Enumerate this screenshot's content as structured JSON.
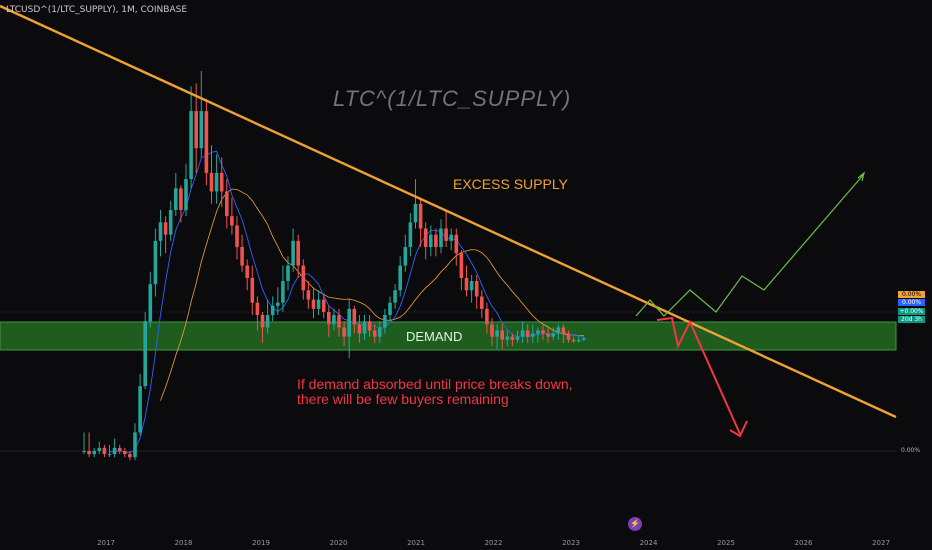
{
  "header": {
    "symbol_text": "LTCUSD^(1/LTC_SUPPLY), 1M, COINBASE"
  },
  "watermark": "LTC^(1/LTC_SUPPLY)",
  "annotations": {
    "excess_supply": "EXCESS SUPPLY",
    "demand": "DEMAND",
    "note_line1": "If demand absorbed until price breaks down,",
    "note_line2": "there will be few buyers remaining"
  },
  "price_scale": {
    "tags": [
      "0.00%",
      "0.00%",
      "+0.00%",
      "20d 3h"
    ],
    "zero_label": "0.00%"
  },
  "colors": {
    "background": "#0b0b0d",
    "up": "#26a69a",
    "down": "#ef5350",
    "trendline": "#f0a232",
    "demand_zone": "#1f5d1f",
    "ma_fast": "#2962ff",
    "ma_slow": "#f0a232",
    "bull_projection": "#6abf4b",
    "bear_projection": "#f23645"
  },
  "icons": {
    "bottom_marker": "lightning-icon"
  },
  "chart_data": {
    "type": "candlestick",
    "title": "",
    "timeframe": "1M",
    "x_axis": {
      "labels": [
        "2017",
        "2018",
        "2019",
        "2020",
        "2021",
        "2022",
        "2023",
        "2024",
        "2025",
        "2026",
        "2027"
      ]
    },
    "y_axis": {
      "scale": "percent",
      "labels": [
        "0.00%"
      ]
    },
    "candles": [
      {
        "o": 0,
        "c": 0,
        "h": 0.06,
        "l": -0.01
      },
      {
        "o": 0,
        "c": -0.01,
        "h": 0.06,
        "l": -0.02
      },
      {
        "o": -0.01,
        "c": 0,
        "h": 0.01,
        "l": -0.02
      },
      {
        "o": 0,
        "c": 0.01,
        "h": 0.03,
        "l": -0.01
      },
      {
        "o": 0.01,
        "c": -0.01,
        "h": 0.02,
        "l": -0.02
      },
      {
        "o": -0.01,
        "c": -0.01,
        "h": 0.02,
        "l": -0.02
      },
      {
        "o": -0.01,
        "c": 0.01,
        "h": 0.04,
        "l": -0.02
      },
      {
        "o": 0.01,
        "c": 0,
        "h": 0.02,
        "l": -0.01
      },
      {
        "o": 0,
        "c": -0.01,
        "h": 0.01,
        "l": -0.02
      },
      {
        "o": -0.01,
        "c": -0.02,
        "h": 0,
        "l": -0.03
      },
      {
        "o": -0.02,
        "c": 0.06,
        "h": 0.09,
        "l": -0.03
      },
      {
        "o": 0.06,
        "c": 0.21,
        "h": 0.25,
        "l": 0.05
      },
      {
        "o": 0.21,
        "c": 0.42,
        "h": 0.45,
        "l": 0.2
      },
      {
        "o": 0.42,
        "c": 0.54,
        "h": 0.58,
        "l": 0.4
      },
      {
        "o": 0.54,
        "c": 0.68,
        "h": 0.72,
        "l": 0.5
      },
      {
        "o": 0.68,
        "c": 0.74,
        "h": 0.78,
        "l": 0.63
      },
      {
        "o": 0.74,
        "c": 0.7,
        "h": 0.76,
        "l": 0.64
      },
      {
        "o": 0.7,
        "c": 0.78,
        "h": 0.81,
        "l": 0.68
      },
      {
        "o": 0.78,
        "c": 0.85,
        "h": 0.9,
        "l": 0.76
      },
      {
        "o": 0.85,
        "c": 0.78,
        "h": 0.86,
        "l": 0.74
      },
      {
        "o": 0.78,
        "c": 0.88,
        "h": 0.93,
        "l": 0.76
      },
      {
        "o": 0.88,
        "c": 1.1,
        "h": 1.18,
        "l": 0.85
      },
      {
        "o": 1.1,
        "c": 0.98,
        "h": 1.19,
        "l": 0.9
      },
      {
        "o": 0.98,
        "c": 1.1,
        "h": 1.23,
        "l": 0.95
      },
      {
        "o": 1.1,
        "c": 0.9,
        "h": 1.14,
        "l": 0.86
      },
      {
        "o": 0.9,
        "c": 0.84,
        "h": 0.99,
        "l": 0.8
      },
      {
        "o": 0.84,
        "c": 0.9,
        "h": 0.96,
        "l": 0.8
      },
      {
        "o": 0.9,
        "c": 0.84,
        "h": 0.95,
        "l": 0.79
      },
      {
        "o": 0.84,
        "c": 0.76,
        "h": 0.88,
        "l": 0.72
      },
      {
        "o": 0.76,
        "c": 0.73,
        "h": 0.82,
        "l": 0.7
      },
      {
        "o": 0.73,
        "c": 0.66,
        "h": 0.76,
        "l": 0.62
      },
      {
        "o": 0.66,
        "c": 0.6,
        "h": 0.7,
        "l": 0.58
      },
      {
        "o": 0.6,
        "c": 0.56,
        "h": 0.62,
        "l": 0.52
      },
      {
        "o": 0.56,
        "c": 0.48,
        "h": 0.6,
        "l": 0.44
      },
      {
        "o": 0.48,
        "c": 0.44,
        "h": 0.5,
        "l": 0.39
      },
      {
        "o": 0.44,
        "c": 0.4,
        "h": 0.45,
        "l": 0.35
      },
      {
        "o": 0.4,
        "c": 0.44,
        "h": 0.49,
        "l": 0.38
      },
      {
        "o": 0.44,
        "c": 0.47,
        "h": 0.5,
        "l": 0.42
      },
      {
        "o": 0.47,
        "c": 0.48,
        "h": 0.53,
        "l": 0.44
      },
      {
        "o": 0.48,
        "c": 0.55,
        "h": 0.6,
        "l": 0.45
      },
      {
        "o": 0.55,
        "c": 0.6,
        "h": 0.63,
        "l": 0.52
      },
      {
        "o": 0.6,
        "c": 0.68,
        "h": 0.72,
        "l": 0.58
      },
      {
        "o": 0.68,
        "c": 0.6,
        "h": 0.7,
        "l": 0.56
      },
      {
        "o": 0.6,
        "c": 0.52,
        "h": 0.62,
        "l": 0.49
      },
      {
        "o": 0.52,
        "c": 0.49,
        "h": 0.55,
        "l": 0.46
      },
      {
        "o": 0.49,
        "c": 0.46,
        "h": 0.53,
        "l": 0.43
      },
      {
        "o": 0.46,
        "c": 0.49,
        "h": 0.52,
        "l": 0.44
      },
      {
        "o": 0.49,
        "c": 0.45,
        "h": 0.51,
        "l": 0.43
      },
      {
        "o": 0.45,
        "c": 0.41,
        "h": 0.47,
        "l": 0.37
      },
      {
        "o": 0.41,
        "c": 0.44,
        "h": 0.46,
        "l": 0.39
      },
      {
        "o": 0.44,
        "c": 0.4,
        "h": 0.46,
        "l": 0.37
      },
      {
        "o": 0.4,
        "c": 0.37,
        "h": 0.42,
        "l": 0.34
      },
      {
        "o": 0.37,
        "c": 0.46,
        "h": 0.49,
        "l": 0.3
      },
      {
        "o": 0.46,
        "c": 0.41,
        "h": 0.47,
        "l": 0.38
      },
      {
        "o": 0.41,
        "c": 0.38,
        "h": 0.44,
        "l": 0.35
      },
      {
        "o": 0.38,
        "c": 0.42,
        "h": 0.44,
        "l": 0.36
      },
      {
        "o": 0.42,
        "c": 0.39,
        "h": 0.44,
        "l": 0.37
      },
      {
        "o": 0.39,
        "c": 0.37,
        "h": 0.41,
        "l": 0.35
      },
      {
        "o": 0.37,
        "c": 0.4,
        "h": 0.42,
        "l": 0.35
      },
      {
        "o": 0.4,
        "c": 0.44,
        "h": 0.46,
        "l": 0.38
      },
      {
        "o": 0.44,
        "c": 0.48,
        "h": 0.5,
        "l": 0.42
      },
      {
        "o": 0.48,
        "c": 0.52,
        "h": 0.54,
        "l": 0.46
      },
      {
        "o": 0.52,
        "c": 0.6,
        "h": 0.63,
        "l": 0.5
      },
      {
        "o": 0.6,
        "c": 0.66,
        "h": 0.7,
        "l": 0.58
      },
      {
        "o": 0.66,
        "c": 0.74,
        "h": 0.77,
        "l": 0.63
      },
      {
        "o": 0.74,
        "c": 0.8,
        "h": 0.88,
        "l": 0.72
      },
      {
        "o": 0.8,
        "c": 0.72,
        "h": 0.82,
        "l": 0.66
      },
      {
        "o": 0.72,
        "c": 0.66,
        "h": 0.74,
        "l": 0.62
      },
      {
        "o": 0.66,
        "c": 0.7,
        "h": 0.73,
        "l": 0.63
      },
      {
        "o": 0.7,
        "c": 0.66,
        "h": 0.72,
        "l": 0.63
      },
      {
        "o": 0.66,
        "c": 0.72,
        "h": 0.75,
        "l": 0.64
      },
      {
        "o": 0.72,
        "c": 0.68,
        "h": 0.78,
        "l": 0.66
      },
      {
        "o": 0.68,
        "c": 0.7,
        "h": 0.72,
        "l": 0.65
      },
      {
        "o": 0.7,
        "c": 0.64,
        "h": 0.72,
        "l": 0.6
      },
      {
        "o": 0.64,
        "c": 0.56,
        "h": 0.65,
        "l": 0.52
      },
      {
        "o": 0.56,
        "c": 0.52,
        "h": 0.6,
        "l": 0.5
      },
      {
        "o": 0.52,
        "c": 0.55,
        "h": 0.57,
        "l": 0.48
      },
      {
        "o": 0.55,
        "c": 0.5,
        "h": 0.57,
        "l": 0.46
      },
      {
        "o": 0.5,
        "c": 0.46,
        "h": 0.52,
        "l": 0.43
      },
      {
        "o": 0.46,
        "c": 0.41,
        "h": 0.48,
        "l": 0.38
      },
      {
        "o": 0.41,
        "c": 0.37,
        "h": 0.43,
        "l": 0.34
      },
      {
        "o": 0.37,
        "c": 0.39,
        "h": 0.41,
        "l": 0.33
      },
      {
        "o": 0.39,
        "c": 0.36,
        "h": 0.41,
        "l": 0.33
      },
      {
        "o": 0.36,
        "c": 0.37,
        "h": 0.39,
        "l": 0.34
      },
      {
        "o": 0.37,
        "c": 0.36,
        "h": 0.38,
        "l": 0.34
      },
      {
        "o": 0.36,
        "c": 0.37,
        "h": 0.39,
        "l": 0.35
      },
      {
        "o": 0.37,
        "c": 0.39,
        "h": 0.42,
        "l": 0.35
      },
      {
        "o": 0.39,
        "c": 0.37,
        "h": 0.41,
        "l": 0.35
      },
      {
        "o": 0.37,
        "c": 0.38,
        "h": 0.41,
        "l": 0.35
      },
      {
        "o": 0.38,
        "c": 0.39,
        "h": 0.4,
        "l": 0.35
      },
      {
        "o": 0.39,
        "c": 0.38,
        "h": 0.41,
        "l": 0.36
      },
      {
        "o": 0.38,
        "c": 0.37,
        "h": 0.4,
        "l": 0.35
      },
      {
        "o": 0.37,
        "c": 0.38,
        "h": 0.4,
        "l": 0.36
      },
      {
        "o": 0.38,
        "c": 0.4,
        "h": 0.41,
        "l": 0.36
      },
      {
        "o": 0.4,
        "c": 0.38,
        "h": 0.41,
        "l": 0.35
      },
      {
        "o": 0.38,
        "c": 0.36,
        "h": 0.39,
        "l": 0.35
      },
      {
        "o": 0.36,
        "c": 0.355,
        "h": 0.37,
        "l": 0.35
      },
      {
        "o": 0.355,
        "c": 0.36,
        "h": 0.37,
        "l": 0.35
      },
      {
        "o": 0.36,
        "c": 0.365,
        "h": 0.37,
        "l": 0.355
      }
    ]
  }
}
